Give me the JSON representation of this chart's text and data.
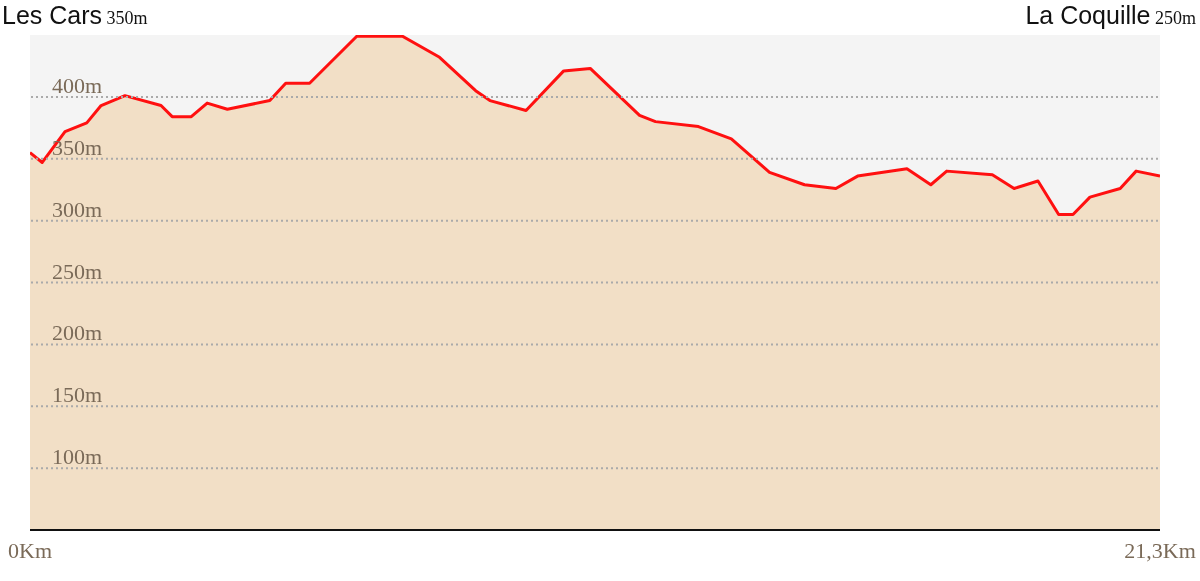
{
  "chart_data": {
    "type": "area",
    "annotations": [
      "Les Cars 350m",
      "La Coquille 250m"
    ],
    "x": [
      0,
      0.23,
      0.66,
      1.07,
      1.34,
      1.79,
      2.47,
      2.68,
      3.04,
      3.34,
      3.72,
      4.52,
      4.82,
      5.27,
      6.16,
      7.02,
      7.72,
      8.4,
      8.67,
      9.35,
      10.06,
      10.56,
      11.49,
      11.79,
      12.6,
      13.22,
      13.94,
      14.6,
      15.19,
      15.6,
      16.53,
      16.98,
      17.28,
      18.14,
      18.55,
      19,
      19.39,
      19.66,
      19.98,
      20.55,
      20.85,
      21.3
    ],
    "series": [
      {
        "color": "#ff1010",
        "values": [
          355,
          347,
          372,
          379,
          393,
          401,
          393,
          384,
          384,
          395,
          390,
          397,
          411,
          411,
          449,
          449,
          432,
          405,
          397,
          389,
          421,
          423,
          385,
          380,
          376,
          366,
          339,
          329,
          326,
          336,
          342,
          329,
          340,
          337,
          326,
          332,
          305,
          305,
          319,
          326,
          340,
          336
        ]
      }
    ],
    "xlim": [
      0,
      21.3
    ],
    "xticks": [
      {
        "value": 0,
        "label": "0Km"
      },
      {
        "value": 21.3,
        "label": "21,3Km"
      }
    ],
    "ylim": [
      50,
      450
    ],
    "yticks": [
      {
        "value": 100,
        "label": "100m"
      },
      {
        "value": 150,
        "label": "150m"
      },
      {
        "value": 200,
        "label": "200m"
      },
      {
        "value": 250,
        "label": "250m"
      },
      {
        "value": 300,
        "label": "300m"
      },
      {
        "value": 350,
        "label": "350m"
      },
      {
        "value": 400,
        "label": "400m"
      }
    ],
    "grid": "y"
  }
}
